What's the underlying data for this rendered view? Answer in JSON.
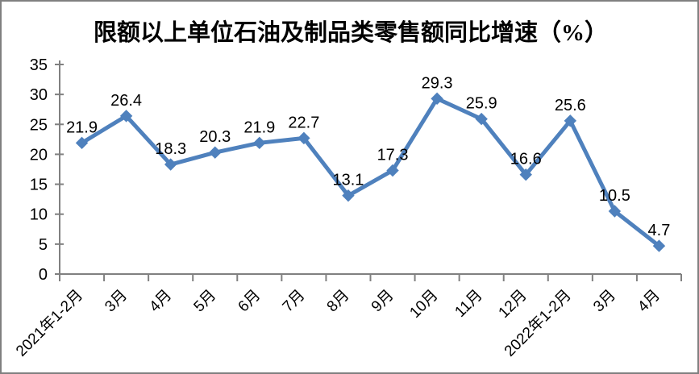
{
  "chart_data": {
    "type": "line",
    "title": "限额以上单位石油及制品类零售额同比增速（%）",
    "categories": [
      "2021年1-2月",
      "3月",
      "4月",
      "5月",
      "6月",
      "7月",
      "8月",
      "9月",
      "10月",
      "11月",
      "12月",
      "2022年1-2月",
      "3月",
      "4月"
    ],
    "values": [
      21.9,
      26.4,
      18.3,
      20.3,
      21.9,
      22.7,
      13.1,
      17.3,
      29.3,
      25.9,
      16.6,
      25.6,
      10.5,
      4.7
    ],
    "xlabel": "",
    "ylabel": "",
    "ylim": [
      0,
      35
    ],
    "yticks": [
      0,
      5,
      10,
      15,
      20,
      25,
      30,
      35
    ],
    "grid": false,
    "legend": "none",
    "data_labels_shown": true,
    "x_tick_rotation_deg": 45,
    "marker_shape": "diamond",
    "colors": {
      "line": "#4F81BD",
      "marker": "#4F81BD",
      "axis": "#808080",
      "text": "#000000",
      "background": "#FFFFFF",
      "frame_border": "#808080"
    }
  }
}
